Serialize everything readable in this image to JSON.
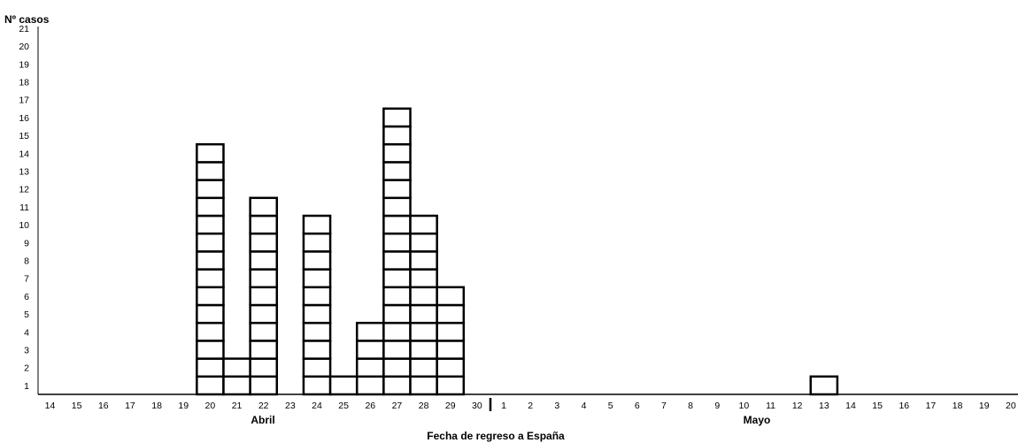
{
  "chart_data": {
    "type": "bar",
    "title": "",
    "ylabel": "Nº casos",
    "xlabel": "Fecha de regreso a España",
    "ylim": [
      0,
      21
    ],
    "grid": false,
    "legend": "none",
    "months": [
      {
        "label": "Abril",
        "days": [
          14,
          15,
          16,
          17,
          18,
          19,
          20,
          21,
          22,
          23,
          24,
          25,
          26,
          27,
          28,
          29,
          30
        ]
      },
      {
        "label": "Mayo",
        "days": [
          1,
          2,
          3,
          4,
          5,
          6,
          7,
          8,
          9,
          10,
          11,
          12,
          13,
          14,
          15,
          16,
          17,
          18,
          19,
          20
        ]
      }
    ],
    "categories": [
      "14",
      "15",
      "16",
      "17",
      "18",
      "19",
      "20",
      "21",
      "22",
      "23",
      "24",
      "25",
      "26",
      "27",
      "28",
      "29",
      "30",
      "1",
      "2",
      "3",
      "4",
      "5",
      "6",
      "7",
      "8",
      "9",
      "10",
      "11",
      "12",
      "13",
      "14",
      "15",
      "16",
      "17",
      "18",
      "19",
      "20"
    ],
    "values": [
      0,
      0,
      0,
      0,
      0,
      0,
      14,
      2,
      11,
      0,
      10,
      1,
      4,
      16,
      10,
      6,
      0,
      0,
      0,
      0,
      0,
      0,
      0,
      0,
      0,
      0,
      0,
      0,
      0,
      1,
      0,
      0,
      0,
      0,
      0,
      0,
      0
    ],
    "yticks": [
      "1",
      "2",
      "3",
      "4",
      "5",
      "6",
      "7",
      "8",
      "9",
      "10",
      "11",
      "12",
      "13",
      "14",
      "15",
      "16",
      "17",
      "18",
      "19",
      "20",
      "21"
    ],
    "colors": {
      "stroke": "#000000",
      "fill": "#ffffff"
    }
  }
}
